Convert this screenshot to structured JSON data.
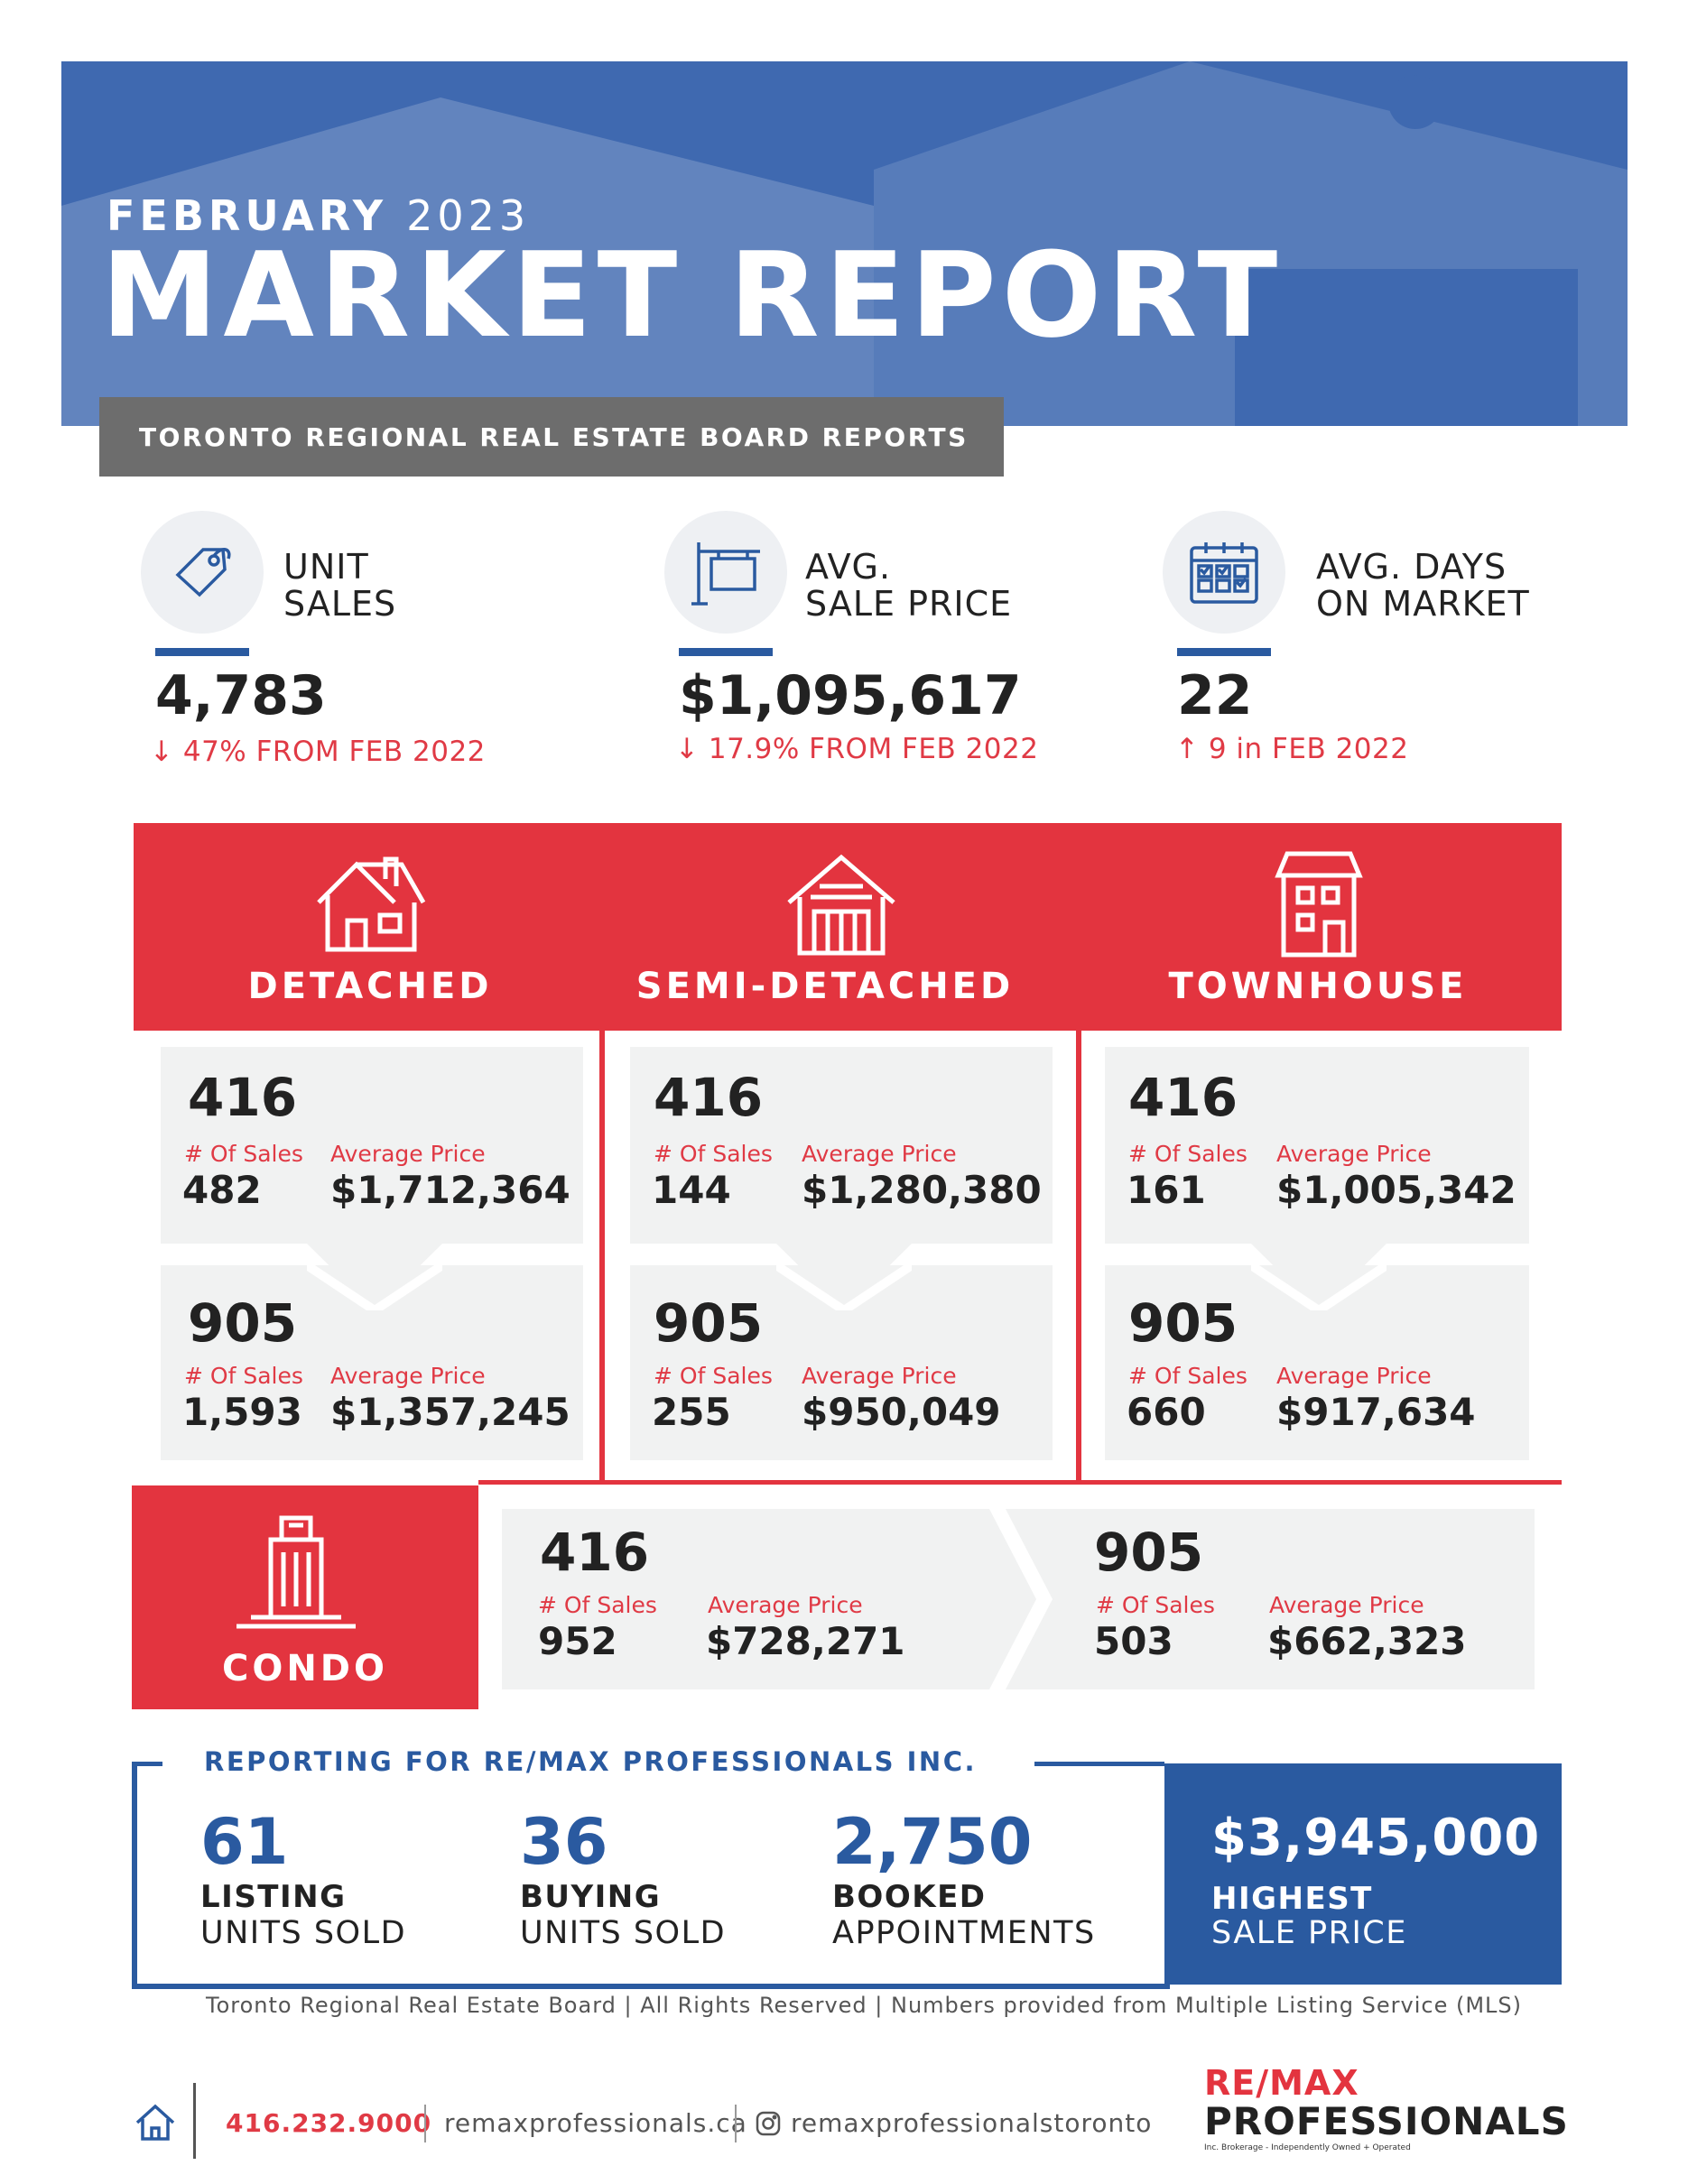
{
  "header": {
    "month": "FEBRUARY",
    "year": "2023",
    "title": "MARKET REPORT",
    "subtitle": "TORONTO REGIONAL REAL ESTATE BOARD REPORTS"
  },
  "stats": [
    {
      "icon": "price-tag-icon",
      "label_line1": "UNIT",
      "label_line2": "SALES",
      "value": "4,783",
      "change_icon": "arrow-down-icon",
      "change": "47% FROM FEB 2022"
    },
    {
      "icon": "sale-sign-icon",
      "label_line1": "AVG.",
      "label_line2": "SALE PRICE",
      "value": "$1,095,617",
      "change_icon": "arrow-down-icon",
      "change": "17.9% FROM FEB 2022"
    },
    {
      "icon": "calendar-icon",
      "label_line1": "AVG. DAYS",
      "label_line2": "ON MARKET",
      "value": "22",
      "change_icon": "arrow-up-icon",
      "change": "9 in FEB 2022"
    }
  ],
  "types": [
    {
      "name": "DETACHED",
      "icon": "detached-house-icon",
      "a": {
        "area": "416",
        "sales_label": "# Of Sales",
        "price_label": "Average Price",
        "sales": "482",
        "price": "$1,712,364"
      },
      "b": {
        "area": "905",
        "sales_label": "# Of Sales",
        "price_label": "Average Price",
        "sales": "1,593",
        "price": "$1,357,245"
      }
    },
    {
      "name": "SEMI-DETACHED",
      "icon": "semi-detached-house-icon",
      "a": {
        "area": "416",
        "sales_label": "# Of Sales",
        "price_label": "Average Price",
        "sales": "144",
        "price": "$1,280,380"
      },
      "b": {
        "area": "905",
        "sales_label": "# Of Sales",
        "price_label": "Average Price",
        "sales": "255",
        "price": "$950,049"
      }
    },
    {
      "name": "TOWNHOUSE",
      "icon": "townhouse-icon",
      "a": {
        "area": "416",
        "sales_label": "# Of Sales",
        "price_label": "Average Price",
        "sales": "161",
        "price": "$1,005,342"
      },
      "b": {
        "area": "905",
        "sales_label": "# Of Sales",
        "price_label": "Average Price",
        "sales": "660",
        "price": "$917,634"
      }
    }
  ],
  "condo": {
    "name": "CONDO",
    "icon": "condo-building-icon",
    "a": {
      "area": "416",
      "sales_label": "# Of Sales",
      "price_label": "Average Price",
      "sales": "952",
      "price": "$728,271"
    },
    "b": {
      "area": "905",
      "sales_label": "# Of Sales",
      "price_label": "Average Price",
      "sales": "503",
      "price": "$662,323"
    }
  },
  "reporting": {
    "title": "REPORTING FOR RE/MAX PROFESSIONALS INC.",
    "items": [
      {
        "value": "61",
        "line1": "LISTING",
        "line2": "UNITS SOLD"
      },
      {
        "value": "36",
        "line1": "BUYING",
        "line2": "UNITS SOLD"
      },
      {
        "value": "2,750",
        "line1": "BOOKED",
        "line2": "APPOINTMENTS"
      }
    ],
    "highest": {
      "value": "$3,945,000",
      "line1": "HIGHEST",
      "line2": "SALE PRICE"
    }
  },
  "footnote": "Toronto Regional Real Estate Board | All Rights Reserved | Numbers provided from Multiple Listing Service (MLS)",
  "footer": {
    "phone": "416.232.9000",
    "website": "remaxprofessionals.ca",
    "instagram": "remaxprofessionalstoronto",
    "brand_line1": "RE/MAX",
    "brand_line2": "PROFESSIONALS",
    "brand_tagline": "Inc. Brokerage - Independently Owned + Operated"
  },
  "colors": {
    "blue": "#2a5aa0",
    "red": "#e3343f",
    "gray": "#6d6d6d"
  }
}
